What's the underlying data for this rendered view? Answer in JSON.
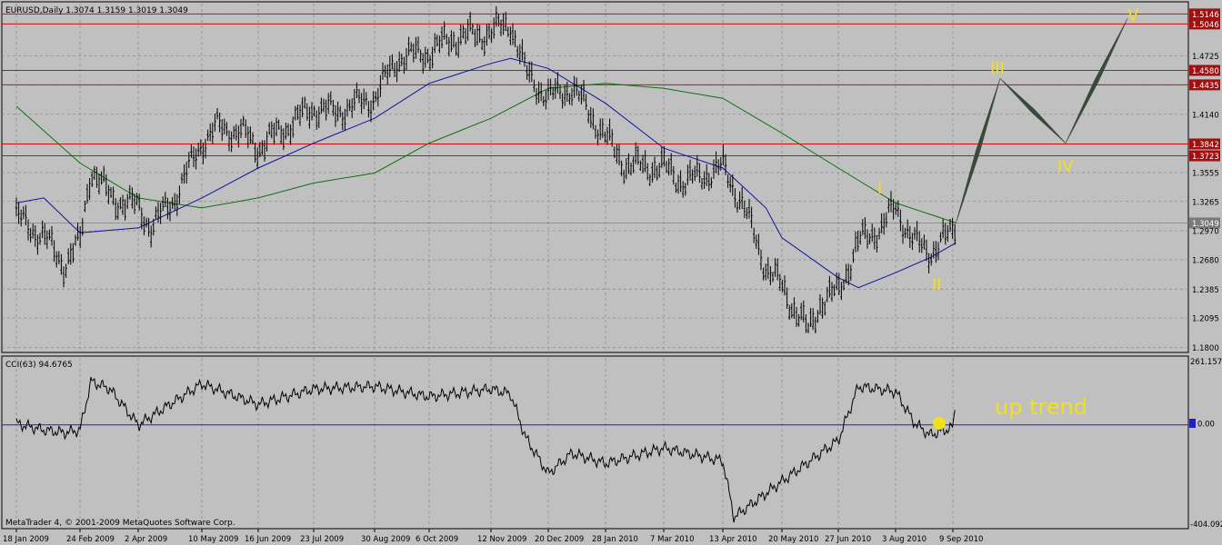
{
  "header": {
    "title": "EURUSD,Daily  1.3074 1.3159 1.3019 1.3049"
  },
  "indicator": {
    "label": "CCI(63) 94.6765",
    "scale_top": "261.157",
    "scale_zero": "0.00",
    "scale_bottom": "-404.092"
  },
  "footer": {
    "copyright": "MetaTrader 4, © 2001-2009 MetaQuotes Software Corp."
  },
  "annotations": {
    "wave_labels": [
      "I",
      "II",
      "III",
      "IV",
      "V"
    ],
    "trend_text": "up trend"
  },
  "colors": {
    "background": "#c0c0c0",
    "grid": "#8c8c8c",
    "bars": "#000000",
    "ma_fast": "#1010a0",
    "ma_slow": "#107010",
    "resistance": "#d01010",
    "price_badge": "#a01010",
    "wave_label": "#f0e020",
    "wave_path": "#3a4a3a",
    "cci_zero": "#2020c0"
  },
  "chart_data": [
    {
      "type": "candlestick",
      "title": "EURUSD,Daily",
      "ohlc_last": {
        "open": 1.3074,
        "high": 1.3159,
        "low": 1.3019,
        "close": 1.3049
      },
      "price_axis_labels": [
        "1.5146",
        "1.5046",
        "1.4725",
        "1.4580",
        "1.4435",
        "1.4140",
        "1.3842",
        "1.3723",
        "1.3555",
        "1.3265",
        "1.3049",
        "1.2970",
        "1.2680",
        "1.2385",
        "1.2095",
        "1.1800"
      ],
      "y_range": [
        1.175,
        1.525
      ],
      "horizontal_levels": [
        1.5146,
        1.5046,
        1.458,
        1.4435,
        1.3842,
        1.3723
      ],
      "current_price": 1.3049,
      "date_labels": [
        "18 Jan 2009",
        "24 Feb 2009",
        "2 Apr 2009",
        "10 May 2009",
        "16 Jun 2009",
        "23 Jul 2009",
        "30 Aug 2009",
        "6 Oct 2009",
        "12 Nov 2009",
        "20 Dec 2009",
        "28 Jan 2010",
        "7 Mar 2010",
        "13 Apr 2010",
        "20 May 2010",
        "27 Jun 2010",
        "3 Aug 2010",
        "9 Sep 2010"
      ],
      "price_path": [
        [
          "18 Jan 2009",
          1.31
        ],
        [
          "3 Feb 2009",
          1.29
        ],
        [
          "15 Feb 2009",
          1.262
        ],
        [
          "24 Feb 2009",
          1.285
        ],
        [
          "3 Mar 2009",
          1.36
        ],
        [
          "15 Mar 2009",
          1.33
        ],
        [
          "2 Apr 2009",
          1.32
        ],
        [
          "10 Apr 2009",
          1.3
        ],
        [
          "24 Apr 2009",
          1.33
        ],
        [
          "10 May 2009",
          1.385
        ],
        [
          "20 May 2009",
          1.4
        ],
        [
          "5 Jun 2009",
          1.395
        ],
        [
          "16 Jun 2009",
          1.38
        ],
        [
          "23 Jul 2009",
          1.42
        ],
        [
          "5 Aug 2009",
          1.415
        ],
        [
          "30 Aug 2009",
          1.43
        ],
        [
          "15 Sep 2009",
          1.47
        ],
        [
          "6 Oct 2009",
          1.475
        ],
        [
          "20 Oct 2009",
          1.49
        ],
        [
          "12 Nov 2009",
          1.495
        ],
        [
          "25 Nov 2009",
          1.505
        ],
        [
          "5 Dec 2009",
          1.455
        ],
        [
          "20 Dec 2009",
          1.43
        ],
        [
          "5 Jan 2010",
          1.44
        ],
        [
          "15 Jan 2010",
          1.42
        ],
        [
          "28 Jan 2010",
          1.39
        ],
        [
          "10 Feb 2010",
          1.362
        ],
        [
          "7 Mar 2010",
          1.36
        ],
        [
          "20 Mar 2010",
          1.345
        ],
        [
          "13 Apr 2010",
          1.36
        ],
        [
          "25 Apr 2010",
          1.325
        ],
        [
          "10 May 2010",
          1.26
        ],
        [
          "20 May 2010",
          1.24
        ],
        [
          "7 Jun 2010",
          1.195
        ],
        [
          "15 Jun 2010",
          1.225
        ],
        [
          "27 Jun 2010",
          1.235
        ],
        [
          "10 Jul 2010",
          1.285
        ],
        [
          "25 Jul 2010",
          1.3
        ],
        [
          "3 Aug 2010",
          1.32
        ],
        [
          "15 Aug 2010",
          1.285
        ],
        [
          "25 Aug 2010",
          1.275
        ],
        [
          "9 Sep 2010",
          1.295
        ],
        [
          "11 Sep 2010",
          1.305
        ]
      ],
      "ma_fast_path": [
        [
          "18 Jan 2009",
          1.325
        ],
        [
          "3 Feb 2009",
          1.33
        ],
        [
          "24 Feb 2009",
          1.295
        ],
        [
          "2 Apr 2009",
          1.3
        ],
        [
          "10 May 2009",
          1.33
        ],
        [
          "16 Jun 2009",
          1.36
        ],
        [
          "23 Jul 2009",
          1.385
        ],
        [
          "30 Aug 2009",
          1.41
        ],
        [
          "6 Oct 2009",
          1.445
        ],
        [
          "12 Nov 2009",
          1.465
        ],
        [
          "25 Nov 2009",
          1.47
        ],
        [
          "20 Dec 2009",
          1.46
        ],
        [
          "28 Jan 2010",
          1.425
        ],
        [
          "7 Mar 2010",
          1.38
        ],
        [
          "13 Apr 2010",
          1.36
        ],
        [
          "10 May 2010",
          1.32
        ],
        [
          "20 May 2010",
          1.29
        ],
        [
          "27 Jun 2010",
          1.25
        ],
        [
          "10 Jul 2010",
          1.24
        ],
        [
          "3 Aug 2010",
          1.255
        ],
        [
          "25 Aug 2010",
          1.27
        ],
        [
          "11 Sep 2010",
          1.285
        ]
      ],
      "ma_slow_path": [
        [
          "18 Jan 2009",
          1.422
        ],
        [
          "24 Feb 2009",
          1.365
        ],
        [
          "2 Apr 2009",
          1.33
        ],
        [
          "10 May 2009",
          1.32
        ],
        [
          "16 Jun 2009",
          1.33
        ],
        [
          "23 Jul 2009",
          1.345
        ],
        [
          "30 Aug 2009",
          1.355
        ],
        [
          "6 Oct 2009",
          1.385
        ],
        [
          "12 Nov 2009",
          1.41
        ],
        [
          "20 Dec 2009",
          1.44
        ],
        [
          "28 Jan 2010",
          1.445
        ],
        [
          "7 Mar 2010",
          1.44
        ],
        [
          "13 Apr 2010",
          1.43
        ],
        [
          "20 May 2010",
          1.395
        ],
        [
          "27 Jun 2010",
          1.36
        ],
        [
          "3 Aug 2010",
          1.325
        ],
        [
          "11 Sep 2010",
          1.305
        ]
      ],
      "projection_path": [
        [
          "11 Sep 2010",
          1.305
        ],
        [
          "III",
          1.45
        ],
        [
          "IV",
          1.385
        ],
        [
          "V",
          1.51
        ]
      ]
    },
    {
      "type": "line",
      "title": "CCI(63) 94.6765",
      "y_range": [
        -404.092,
        261.157
      ],
      "zero_level": 0.0,
      "path": [
        [
          "18 Jan 2009",
          5
        ],
        [
          "3 Feb 2009",
          -20
        ],
        [
          "15 Feb 2009",
          -30
        ],
        [
          "24 Feb 2009",
          -20
        ],
        [
          "3 Mar 2009",
          170
        ],
        [
          "15 Mar 2009",
          140
        ],
        [
          "2 Apr 2009",
          0
        ],
        [
          "10 May 2009",
          160
        ],
        [
          "16 Jun 2009",
          80
        ],
        [
          "23 Jul 2009",
          140
        ],
        [
          "30 Aug 2009",
          150
        ],
        [
          "6 Oct 2009",
          110
        ],
        [
          "12 Nov 2009",
          140
        ],
        [
          "25 Nov 2009",
          120
        ],
        [
          "5 Dec 2009",
          -50
        ],
        [
          "20 Dec 2009",
          -190
        ],
        [
          "5 Jan 2010",
          -110
        ],
        [
          "28 Jan 2010",
          -150
        ],
        [
          "7 Mar 2010",
          -90
        ],
        [
          "13 Apr 2010",
          -140
        ],
        [
          "20 Apr 2010",
          -360
        ],
        [
          "20 May 2010",
          -220
        ],
        [
          "27 Jun 2010",
          -60
        ],
        [
          "10 Jul 2010",
          150
        ],
        [
          "3 Aug 2010",
          130
        ],
        [
          "15 Aug 2010",
          10
        ],
        [
          "25 Aug 2010",
          -40
        ],
        [
          "9 Sep 2010",
          -10
        ],
        [
          "11 Sep 2010",
          94.6765
        ]
      ]
    }
  ]
}
